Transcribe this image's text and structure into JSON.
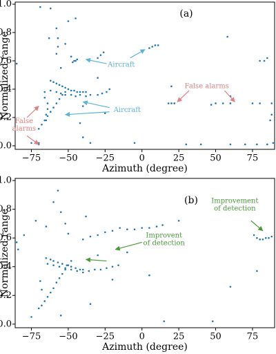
{
  "chart_data": [
    {
      "type": "scatter",
      "panel_label": "(a)",
      "xlabel": "Azimuth (degree)",
      "ylabel": "Normalized range",
      "color": "#1f77b4",
      "xlim": [
        -86,
        90
      ],
      "ylim": [
        -0.025,
        1.015
      ],
      "xticks": [
        {
          "value": -75,
          "label": "−75"
        },
        {
          "value": -50,
          "label": "−50"
        },
        {
          "value": -25,
          "label": "−25"
        },
        0,
        25,
        50,
        75
      ],
      "yticks": [
        {
          "value": 0,
          "label": "0.0"
        },
        0.2,
        0.4,
        0.6,
        0.8,
        {
          "value": 1,
          "label": "1.0"
        }
      ],
      "annotations": [
        {
          "lines": [
            "Aircraft"
          ],
          "color": "#5ab4d8"
        },
        {
          "lines": [
            "Aircraft"
          ],
          "color": "#5ab4d8"
        },
        {
          "lines": [
            "False alarms"
          ],
          "color": "#e08080"
        },
        {
          "lines": [
            "False",
            "alarms"
          ],
          "color": "#e08080"
        }
      ],
      "x": [
        -62,
        -60,
        -58,
        -56,
        -54,
        -52,
        -50,
        -48,
        -46,
        -44,
        -42,
        -40,
        -38,
        -62,
        -58,
        -55,
        -52,
        -48,
        -45,
        -42,
        -38,
        -35,
        -30,
        -27,
        -24,
        -22,
        -70,
        -68,
        -66,
        -64,
        -62,
        -60,
        -58,
        -56,
        -54,
        -52,
        -65,
        -65,
        -64,
        -64,
        -66,
        -66,
        -47,
        -46,
        -45,
        -44,
        -30,
        -28,
        -26,
        5,
        7,
        9,
        11,
        -75,
        -70,
        -70,
        -85,
        -69,
        -58,
        -57,
        -57,
        -58,
        -55,
        -50,
        -52,
        -62,
        -42,
        -40,
        -35,
        -25,
        -40,
        -30,
        -48,
        -63,
        -45,
        18,
        20,
        22,
        50,
        55,
        60,
        75,
        80,
        88,
        30,
        40,
        60,
        70,
        78,
        85,
        89,
        60,
        80,
        83,
        85,
        88,
        87,
        20,
        58,
        47,
        -5
      ],
      "values": [
        0.46,
        0.45,
        0.44,
        0.43,
        0.42,
        0.41,
        0.4,
        0.39,
        0.39,
        0.38,
        0.38,
        0.38,
        0.38,
        0.39,
        0.38,
        0.37,
        0.36,
        0.36,
        0.35,
        0.36,
        0.35,
        0.36,
        0.36,
        0.37,
        0.38,
        0.4,
        0.12,
        0.15,
        0.18,
        0.21,
        0.24,
        0.27,
        0.3,
        0.33,
        0.36,
        0.38,
        0.18,
        0.22,
        0.26,
        0.3,
        0.34,
        0.38,
        0.59,
        0.6,
        0.6,
        0.61,
        0.62,
        0.64,
        0.66,
        0.69,
        0.7,
        0.71,
        0.71,
        0.02,
        0.02,
        0.01,
        0.58,
        0.98,
        0.83,
        0.76,
        0.7,
        0.65,
        0.55,
        0.88,
        0.72,
        0.97,
        0.16,
        0.06,
        0.02,
        0.23,
        0.28,
        0.48,
        0.63,
        0.76,
        0.9,
        0.3,
        0.3,
        0.3,
        0.3,
        0.3,
        0.3,
        0.3,
        0.3,
        0.3,
        0.01,
        0.01,
        0.01,
        0.01,
        0.01,
        0.01,
        0.02,
        0.35,
        0.6,
        0.6,
        0.62,
        0.22,
        0.18,
        0.42,
        0.77,
        0.29,
        0.02
      ]
    },
    {
      "type": "scatter",
      "panel_label": "(b)",
      "xlabel": "Azimuth (degree)",
      "ylabel": "Normalized range",
      "color": "#1f77b4",
      "xlim": [
        -86,
        90
      ],
      "ylim": [
        -0.025,
        1.015
      ],
      "xticks": [
        {
          "value": -75,
          "label": "−75"
        },
        {
          "value": -50,
          "label": "−50"
        },
        {
          "value": -25,
          "label": "−25"
        },
        0,
        25,
        50,
        75
      ],
      "yticks": [
        {
          "value": 0,
          "label": "0.0"
        },
        0.2,
        0.4,
        0.6,
        0.8,
        {
          "value": 1,
          "label": "1.0"
        }
      ],
      "annotations": [
        {
          "lines": [
            "Improvement",
            "of detection"
          ],
          "color": "#4a9a3a"
        },
        {
          "lines": [
            "Improvent",
            "of detection"
          ],
          "color": "#4a9a3a"
        }
      ],
      "x": [
        -65,
        -62,
        -60,
        -57,
        -54,
        -51,
        -48,
        -45,
        -42,
        -40,
        -64,
        -60,
        -56,
        -52,
        -48,
        -44,
        -40,
        -36,
        -32,
        -28,
        -24,
        -20,
        -16,
        -68,
        -66,
        -64,
        -62,
        -60,
        -58,
        -56,
        -54,
        -52,
        -50,
        -48,
        -40,
        -35,
        -30,
        -25,
        -20,
        -15,
        -10,
        -5,
        0,
        5,
        10,
        14,
        76,
        78,
        80,
        82,
        84,
        86,
        88,
        -57,
        -60,
        -55,
        -52,
        -50,
        -85,
        -84,
        -80,
        -72,
        -65,
        -69,
        -68,
        -75,
        -55,
        -35,
        -30,
        -20,
        15,
        25,
        48,
        60,
        78,
        5,
        -10,
        -38,
        -70
      ],
      "values": [
        0.46,
        0.45,
        0.44,
        0.43,
        0.42,
        0.41,
        0.4,
        0.39,
        0.38,
        0.38,
        0.42,
        0.41,
        0.4,
        0.39,
        0.38,
        0.37,
        0.36,
        0.37,
        0.38,
        0.38,
        0.39,
        0.4,
        0.41,
        0.13,
        0.16,
        0.19,
        0.22,
        0.25,
        0.29,
        0.32,
        0.35,
        0.38,
        0.41,
        0.44,
        0.59,
        0.61,
        0.62,
        0.64,
        0.65,
        0.67,
        0.66,
        0.66,
        0.67,
        0.67,
        0.68,
        0.69,
        0.62,
        0.6,
        0.59,
        0.59,
        0.6,
        0.6,
        0.61,
        0.93,
        0.85,
        0.78,
        0.7,
        0.63,
        0.57,
        0.52,
        0.62,
        0.72,
        0.68,
        0.3,
        0.24,
        0.05,
        0.06,
        0.14,
        0.48,
        0.31,
        0.02,
        0.72,
        0.02,
        0.26,
        0.37,
        0.34,
        0.5,
        0.75,
        0.11
      ]
    }
  ]
}
